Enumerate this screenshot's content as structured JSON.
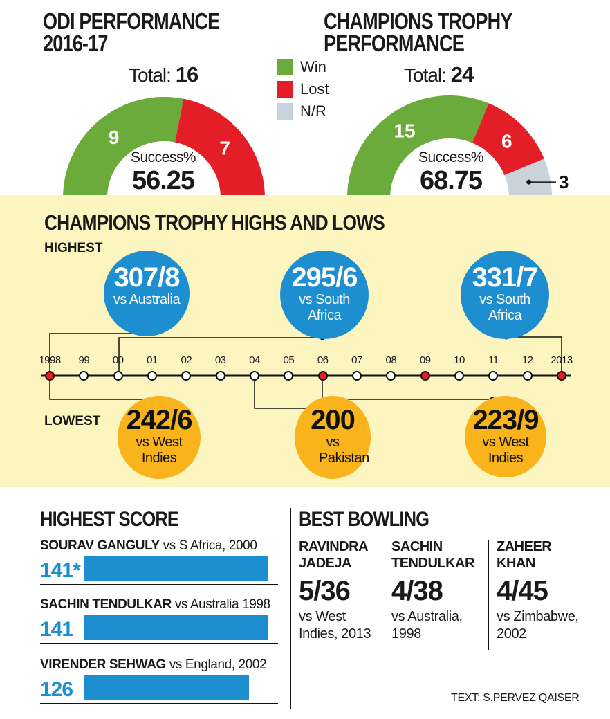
{
  "odi": {
    "title_line1": "ODI PERFORMANCE",
    "title_line2": "2016-17",
    "total_label": "Total:",
    "total_value": "16",
    "success_label": "Success%",
    "success_value": "56.25"
  },
  "ct": {
    "title_line1": "CHAMPIONS TROPHY",
    "title_line2": "PERFORMANCE",
    "total_label": "Total:",
    "total_value": "24",
    "success_label": "Success%",
    "success_value": "68.75"
  },
  "legend": [
    {
      "label": "Win",
      "color": "#6aab3c"
    },
    {
      "label": "Lost",
      "color": "#e31e26"
    },
    {
      "label": "N/R",
      "color": "#c9d3d9"
    }
  ],
  "highs_lows": {
    "title": "CHAMPIONS TROPHY HIGHS AND LOWS",
    "highest_label": "HIGHEST",
    "lowest_label": "LOWEST",
    "years": [
      "1998",
      "99",
      "00",
      "01",
      "02",
      "03",
      "04",
      "05",
      "06",
      "07",
      "08",
      "09",
      "10",
      "11",
      "12",
      "2013"
    ],
    "red_years": [
      0,
      8,
      11,
      15
    ],
    "highest": [
      {
        "score": "307/8",
        "opp": "vs Australia"
      },
      {
        "score": "295/6",
        "opp": "vs South Africa"
      },
      {
        "score": "331/7",
        "opp": "vs South Africa"
      }
    ],
    "lowest": [
      {
        "score": "242/6",
        "opp": "vs West Indies"
      },
      {
        "score": "200",
        "opp": "vs Pakistan"
      },
      {
        "score": "223/9",
        "opp": "vs West Indies"
      }
    ]
  },
  "highest_score": {
    "title": "HIGHEST SCORE",
    "players": [
      {
        "name": "SOURAV GANGULY",
        "detail": "vs S Africa, 2000",
        "value_label": "141*"
      },
      {
        "name": "SACHIN TENDULKAR",
        "detail": "vs Australia 1998",
        "value_label": "141"
      },
      {
        "name": "VIRENDER SEHWAG",
        "detail": "vs England, 2002",
        "value_label": "126"
      }
    ]
  },
  "best_bowling": {
    "title": "BEST BOWLING",
    "players": [
      {
        "name1": "RAVINDRA",
        "name2": "JADEJA",
        "figure": "5/36",
        "vs1": "vs West",
        "vs2": "Indies, 2013"
      },
      {
        "name1": "SACHIN",
        "name2": "TENDULKAR",
        "figure": "4/38",
        "vs1": "vs Australia,",
        "vs2": "1998"
      },
      {
        "name1": "ZAHEER",
        "name2": "KHAN",
        "figure": "4/45",
        "vs1": "vs Zimbabwe,",
        "vs2": "2002"
      }
    ]
  },
  "credit": "TEXT: S.PERVEZ QAISER",
  "chart_data": [
    {
      "type": "pie",
      "title": "ODI PERFORMANCE 2016-17",
      "categories": [
        "Win",
        "Lost"
      ],
      "values": [
        9,
        7
      ],
      "total": 16,
      "success_pct": 56.25
    },
    {
      "type": "pie",
      "title": "CHAMPIONS TROPHY PERFORMANCE",
      "categories": [
        "Win",
        "Lost",
        "N/R"
      ],
      "values": [
        15,
        6,
        3
      ],
      "total": 24,
      "success_pct": 68.75
    },
    {
      "type": "bar",
      "title": "HIGHEST SCORE",
      "categories": [
        "SOURAV GANGULY",
        "SACHIN TENDULKAR",
        "VIRENDER SEHWAG"
      ],
      "values": [
        141,
        141,
        126
      ],
      "xlim": [
        0,
        150
      ]
    }
  ]
}
